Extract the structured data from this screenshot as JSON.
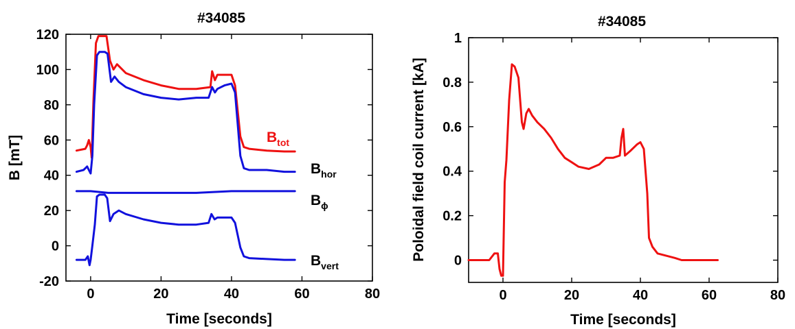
{
  "colors": {
    "red": "#ee1111",
    "blue": "#1111dd",
    "axis": "#000000"
  },
  "chart_data": [
    {
      "type": "line",
      "title": "#34085",
      "xlabel": "Time [seconds]",
      "ylabel": "B [mT]",
      "xlim": [
        -7,
        80
      ],
      "ylim": [
        -20,
        120
      ],
      "xticks": [
        0,
        20,
        40,
        60,
        80
      ],
      "yticks": [
        -20,
        0,
        20,
        40,
        60,
        80,
        100,
        120
      ],
      "grid": false,
      "series": [
        {
          "name": "B_tot",
          "label_main": "B",
          "label_sub": "tot",
          "color": "#ee1111",
          "x": [
            -4,
            -1.5,
            -1,
            -0.5,
            0,
            0.3,
            0.8,
            1.5,
            2.2,
            3,
            4.5,
            5.5,
            6.5,
            7.5,
            10,
            15,
            20,
            25,
            30,
            34,
            34.5,
            35.3,
            36,
            38,
            40,
            41,
            42.5,
            43.5,
            45,
            50,
            55,
            58
          ],
          "y": [
            54,
            55,
            57,
            60,
            56,
            50,
            82,
            115,
            119,
            119,
            119,
            105,
            100,
            103,
            98,
            94,
            91,
            89,
            89,
            90,
            99,
            94,
            97,
            97,
            97,
            91,
            62,
            56,
            55,
            54,
            53.5,
            53.5
          ]
        },
        {
          "name": "B_hor",
          "label_main": "B",
          "label_sub": "hor",
          "color": "#1111dd",
          "x": [
            -4,
            -2,
            -1,
            -0.5,
            0,
            0.5,
            1,
            1.8,
            2.5,
            4,
            4.8,
            5.8,
            6.8,
            8,
            10,
            15,
            20,
            25,
            30,
            33.5,
            34.5,
            35.3,
            36,
            38,
            40,
            41,
            42.5,
            43.5,
            45,
            50,
            55,
            58
          ],
          "y": [
            42,
            43,
            45,
            43,
            41,
            51,
            80,
            108,
            110,
            110,
            109,
            93,
            96,
            93,
            90,
            86,
            84,
            83,
            84,
            84,
            90,
            87,
            89,
            91,
            92,
            87,
            51,
            44,
            43,
            43,
            42,
            42
          ]
        },
        {
          "name": "B_phi",
          "label_main": "B",
          "label_sub": "ϕ",
          "color": "#1111dd",
          "x": [
            -4,
            0,
            5,
            10,
            15,
            20,
            25,
            30,
            35,
            40,
            45,
            50,
            58
          ],
          "y": [
            31,
            31,
            30,
            30,
            30,
            30,
            30,
            30,
            30.5,
            31,
            31,
            31,
            31
          ]
        },
        {
          "name": "B_vert",
          "label_main": "B",
          "label_sub": "vert",
          "color": "#1111dd",
          "x": [
            -4,
            -1.5,
            -0.8,
            -0.3,
            0,
            0.5,
            1.2,
            1.8,
            2.5,
            4,
            4.7,
            5.5,
            6.5,
            8,
            10,
            15,
            20,
            25,
            30,
            33.5,
            34.3,
            35.2,
            36,
            38,
            40,
            41,
            42.5,
            43.5,
            45,
            50,
            55,
            58
          ],
          "y": [
            -8,
            -8,
            -6,
            -11,
            -8,
            0,
            12,
            28,
            29,
            29,
            27,
            14,
            18,
            20,
            18,
            15,
            13,
            12,
            12,
            13,
            18,
            15,
            16,
            16,
            16,
            13,
            -1,
            -6,
            -7,
            -7.5,
            -8,
            -8
          ]
        }
      ]
    },
    {
      "type": "line",
      "title": "#34085",
      "xlabel": "Time [seconds]",
      "ylabel": "Poloidal field coil current [kA]",
      "xlim": [
        -10,
        80
      ],
      "ylim": [
        -0.1,
        1
      ],
      "xticks": [
        0,
        20,
        40,
        60,
        80
      ],
      "yticks": [
        0,
        0.2,
        0.4,
        0.6,
        0.8,
        1
      ],
      "grid": false,
      "series": [
        {
          "name": "current",
          "color": "#ee1111",
          "x": [
            -10,
            -4,
            -3,
            -2.5,
            -1.5,
            -1,
            -0.5,
            0,
            0.5,
            1,
            1.8,
            2.6,
            3.4,
            4.5,
            5.5,
            6,
            6.8,
            7.5,
            8.5,
            10,
            12,
            14,
            16,
            18,
            20,
            22,
            25,
            28,
            30,
            32,
            34,
            34.5,
            35,
            35.5,
            37,
            39,
            40,
            41,
            42,
            42.5,
            43.5,
            45,
            50,
            52,
            55,
            60,
            62.5
          ],
          "y": [
            0,
            0,
            0.02,
            0.03,
            0.03,
            -0.04,
            -0.07,
            -0.07,
            0.35,
            0.45,
            0.72,
            0.88,
            0.87,
            0.82,
            0.62,
            0.59,
            0.66,
            0.68,
            0.65,
            0.62,
            0.59,
            0.55,
            0.5,
            0.46,
            0.44,
            0.42,
            0.41,
            0.43,
            0.46,
            0.46,
            0.47,
            0.55,
            0.59,
            0.47,
            0.49,
            0.52,
            0.53,
            0.5,
            0.3,
            0.1,
            0.06,
            0.03,
            0.01,
            0,
            0,
            0,
            0
          ]
        }
      ]
    }
  ]
}
